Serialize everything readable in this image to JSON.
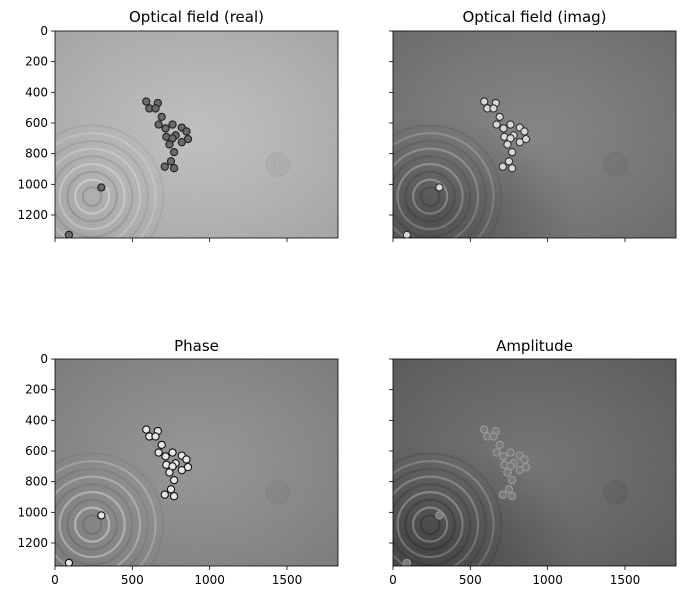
{
  "chart_data": [
    {
      "type": "image",
      "title": "Optical field (real)",
      "colormap": "gray",
      "xlim": [
        0,
        1830
      ],
      "ylim": [
        1350,
        0
      ],
      "x_ticks": [
        0,
        500,
        1000,
        1500
      ],
      "y_ticks": [
        0,
        200,
        400,
        600,
        800,
        1000,
        1200
      ],
      "x_ticklabels": [],
      "y_ticklabels": [
        "0",
        "200",
        "400",
        "600",
        "800",
        "1000",
        "1200"
      ],
      "show_x_ticklabels": false,
      "show_y_ticklabels": true,
      "style": {
        "base": "#bdbdbd",
        "ring": "#8a8a8a",
        "cell_fill": "#6a6a6a",
        "cell_edge": "#202020",
        "dark_corner": false
      }
    },
    {
      "type": "image",
      "title": "Optical field (imag)",
      "colormap": "gray",
      "xlim": [
        0,
        1830
      ],
      "ylim": [
        1350,
        0
      ],
      "x_ticks": [
        0,
        500,
        1000,
        1500
      ],
      "y_ticks": [
        0,
        200,
        400,
        600,
        800,
        1000,
        1200
      ],
      "x_ticklabels": [],
      "y_ticklabels": [],
      "show_x_ticklabels": false,
      "show_y_ticklabels": false,
      "style": {
        "base": "#7c7c7c",
        "ring": "#545454",
        "cell_fill": "#d8d8d8",
        "cell_edge": "#303030",
        "dark_corner": true
      }
    },
    {
      "type": "image",
      "title": "Phase",
      "colormap": "gray",
      "xlim": [
        0,
        1830
      ],
      "ylim": [
        1350,
        0
      ],
      "x_ticks": [
        0,
        500,
        1000,
        1500
      ],
      "y_ticks": [
        0,
        200,
        400,
        600,
        800,
        1000,
        1200
      ],
      "x_ticklabels": [
        "0",
        "500",
        "1000",
        "1500"
      ],
      "y_ticklabels": [
        "0",
        "200",
        "400",
        "600",
        "800",
        "1000",
        "1200"
      ],
      "show_x_ticklabels": true,
      "show_y_ticklabels": true,
      "style": {
        "base": "#8e8e8e",
        "ring": "#6a6a6a",
        "cell_fill": "#e8e8e8",
        "cell_edge": "#111111",
        "dark_corner": false
      }
    },
    {
      "type": "image",
      "title": "Amplitude",
      "colormap": "gray",
      "xlim": [
        0,
        1830
      ],
      "ylim": [
        1350,
        0
      ],
      "x_ticks": [
        0,
        500,
        1000,
        1500
      ],
      "y_ticks": [
        0,
        200,
        400,
        600,
        800,
        1000,
        1200
      ],
      "x_ticklabels": [
        "0",
        "500",
        "1000",
        "1500"
      ],
      "y_ticklabels": [],
      "show_x_ticklabels": true,
      "show_y_ticklabels": false,
      "style": {
        "base": "#6a6a6a",
        "ring": "#3a3a3a",
        "cell_fill": "#7a7a7a",
        "cell_edge": "#9a9a9a",
        "dark_corner": true
      }
    }
  ],
  "features": {
    "ring_center": [
      240,
      1080
    ],
    "ring_radii": [
      60,
      110,
      160,
      210,
      260,
      310,
      360,
      410,
      460
    ],
    "far_ring_center": [
      1440,
      870
    ],
    "cells": [
      [
        590,
        460
      ],
      [
        610,
        505
      ],
      [
        665,
        470
      ],
      [
        650,
        505
      ],
      [
        690,
        560
      ],
      [
        760,
        610
      ],
      [
        670,
        610
      ],
      [
        715,
        635
      ],
      [
        820,
        630
      ],
      [
        780,
        680
      ],
      [
        850,
        655
      ],
      [
        720,
        690
      ],
      [
        760,
        700
      ],
      [
        820,
        725
      ],
      [
        860,
        705
      ],
      [
        740,
        740
      ],
      [
        770,
        790
      ],
      [
        750,
        850
      ],
      [
        710,
        885
      ],
      [
        770,
        895
      ],
      [
        300,
        1020
      ],
      [
        90,
        1330
      ]
    ]
  }
}
